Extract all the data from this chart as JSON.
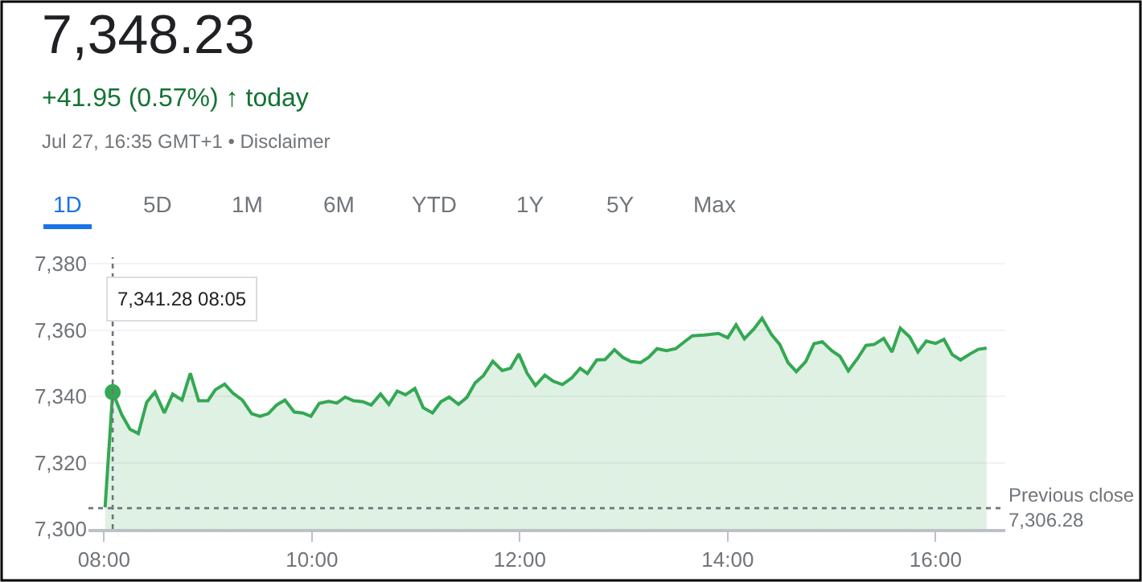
{
  "chart_data": {
    "type": "area",
    "title": "7,348.23",
    "subtitle": "+41.95 (0.57%) ↑ today",
    "annotations": [
      "Jul 27, 16:35 GMT+1 • Disclaimer",
      "1D",
      "5D",
      "1M",
      "6M",
      "YTD",
      "1Y",
      "5Y",
      "Max",
      "7,341.28 08:05"
    ],
    "x": [
      8.01,
      8.083,
      8.17,
      8.25,
      8.33,
      8.41,
      8.49,
      8.58,
      8.66,
      8.75,
      8.83,
      8.91,
      9.0,
      9.07,
      9.16,
      9.24,
      9.33,
      9.42,
      9.5,
      9.58,
      9.66,
      9.74,
      9.83,
      9.91,
      9.99,
      10.07,
      10.16,
      10.24,
      10.32,
      10.4,
      10.49,
      10.57,
      10.66,
      10.74,
      10.82,
      10.9,
      10.99,
      11.07,
      11.16,
      11.24,
      11.32,
      11.41,
      11.49,
      11.57,
      11.65,
      11.74,
      11.83,
      11.91,
      11.99,
      12.07,
      12.15,
      12.24,
      12.32,
      12.41,
      12.5,
      12.58,
      12.65,
      12.74,
      12.82,
      12.91,
      12.99,
      13.07,
      13.16,
      13.24,
      13.32,
      13.41,
      13.5,
      13.58,
      13.66,
      13.78,
      13.91,
      14.0,
      14.08,
      14.16,
      14.25,
      14.33,
      14.42,
      14.5,
      14.58,
      14.66,
      14.75,
      14.83,
      14.91,
      15.0,
      15.08,
      15.16,
      15.25,
      15.33,
      15.41,
      15.5,
      15.58,
      15.66,
      15.75,
      15.83,
      15.91,
      16.0,
      16.08,
      16.16,
      16.24,
      16.33,
      16.41,
      16.49
    ],
    "series": [
      {
        "color": "#34a853",
        "values": [
          7306.5,
          7341.28,
          7334.5,
          7330.1,
          7328.8,
          7338.2,
          7341.3,
          7335.0,
          7340.7,
          7338.9,
          7347.0,
          7338.7,
          7338.7,
          7342.0,
          7343.7,
          7341.0,
          7338.9,
          7334.8,
          7334.0,
          7334.8,
          7337.4,
          7338.9,
          7335.3,
          7335.0,
          7334.0,
          7337.9,
          7338.5,
          7338.0,
          7339.8,
          7338.7,
          7338.4,
          7337.4,
          7340.7,
          7337.6,
          7341.6,
          7340.5,
          7342.4,
          7336.6,
          7335.0,
          7338.4,
          7339.8,
          7337.6,
          7339.7,
          7344.1,
          7346.3,
          7350.6,
          7347.8,
          7348.5,
          7352.8,
          7347.0,
          7343.3,
          7346.4,
          7344.6,
          7343.6,
          7345.6,
          7348.5,
          7346.9,
          7351.0,
          7351.1,
          7354.1,
          7351.8,
          7350.5,
          7350.2,
          7351.8,
          7354.4,
          7353.8,
          7354.4,
          7356.4,
          7358.3,
          7358.5,
          7359.0,
          7357.7,
          7361.6,
          7357.4,
          7360.3,
          7363.6,
          7358.7,
          7355.7,
          7350.2,
          7347.5,
          7350.5,
          7355.9,
          7356.5,
          7353.8,
          7352.1,
          7347.7,
          7351.5,
          7355.4,
          7355.7,
          7357.5,
          7353.4,
          7360.6,
          7358.0,
          7353.4,
          7356.7,
          7356.0,
          7357.2,
          7352.6,
          7351.0,
          7352.8,
          7354.2,
          7354.6
        ]
      },
      {
        "type": "scatter",
        "color": "#34a853",
        "marker": "circle",
        "x": [
          8.083
        ],
        "values": [
          7341.28
        ]
      }
    ],
    "xlim": [
      7.85,
      16.67
    ],
    "ylim": [
      7300,
      7382
    ],
    "xticks": [
      {
        "value": 8,
        "label": "08:00"
      },
      {
        "value": 10,
        "label": "10:00"
      },
      {
        "value": 12,
        "label": "12:00"
      },
      {
        "value": 14,
        "label": "14:00"
      },
      {
        "value": 16,
        "label": "16:00"
      }
    ],
    "yticks": [
      {
        "value": 7300,
        "label": "7,300"
      },
      {
        "value": 7320,
        "label": "7,320"
      },
      {
        "value": 7340,
        "label": "7,340"
      },
      {
        "value": 7360,
        "label": "7,360"
      },
      {
        "value": 7380,
        "label": "7,380"
      }
    ],
    "grid": "y",
    "marker": "none",
    "line_style": "solid",
    "ref_lines": [
      {
        "axis": "y",
        "value": 7306.28,
        "label": "Previous close\n7,306.28",
        "line_style": "dotted",
        "color": "#70757a"
      },
      {
        "axis": "x",
        "value": 8.083,
        "line_style": "dotted",
        "color": "#70757a"
      }
    ]
  }
}
